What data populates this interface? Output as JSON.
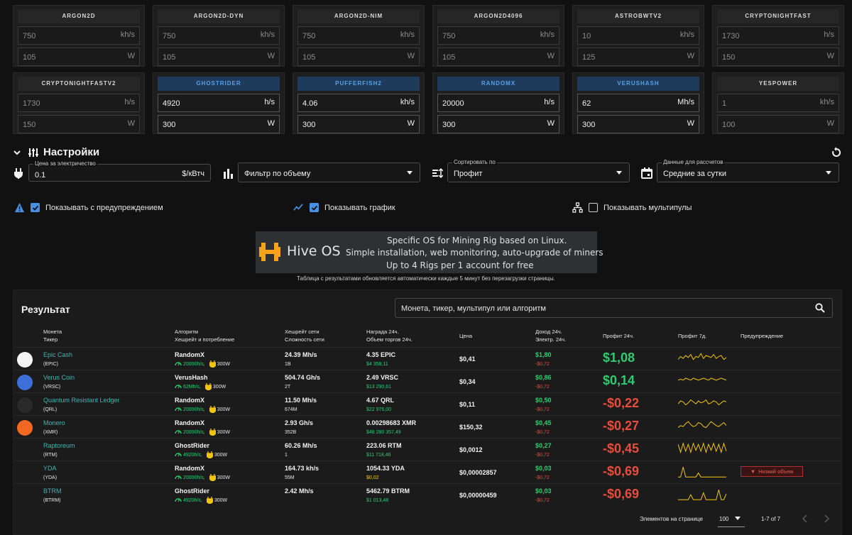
{
  "algorithms": [
    {
      "name": "ARGON2D",
      "hashrate": "750",
      "unit": "kh/s",
      "power": "105",
      "power_unit": "W",
      "active": false
    },
    {
      "name": "ARGON2D-DYN",
      "hashrate": "750",
      "unit": "kh/s",
      "power": "105",
      "power_unit": "W",
      "active": false
    },
    {
      "name": "ARGON2D-NIM",
      "hashrate": "750",
      "unit": "kh/s",
      "power": "105",
      "power_unit": "W",
      "active": false
    },
    {
      "name": "ARGON2D4096",
      "hashrate": "750",
      "unit": "kh/s",
      "power": "105",
      "power_unit": "W",
      "active": false
    },
    {
      "name": "ASTROBWTV2",
      "hashrate": "10",
      "unit": "kh/s",
      "power": "125",
      "power_unit": "W",
      "active": false
    },
    {
      "name": "CRYPTONIGHTFAST",
      "hashrate": "1730",
      "unit": "h/s",
      "power": "150",
      "power_unit": "W",
      "active": false
    },
    {
      "name": "CRYPTONIGHTFASTV2",
      "hashrate": "1730",
      "unit": "h/s",
      "power": "150",
      "power_unit": "W",
      "active": false
    },
    {
      "name": "GHOSTRIDER",
      "hashrate": "4920",
      "unit": "h/s",
      "power": "300",
      "power_unit": "W",
      "active": true
    },
    {
      "name": "PUFFERFISH2",
      "hashrate": "4.06",
      "unit": "kh/s",
      "power": "300",
      "power_unit": "W",
      "active": true
    },
    {
      "name": "RANDOMX",
      "hashrate": "20000",
      "unit": "h/s",
      "power": "300",
      "power_unit": "W",
      "active": true
    },
    {
      "name": "VERUSHASH",
      "hashrate": "62",
      "unit": "Mh/s",
      "power": "300",
      "power_unit": "W",
      "active": true
    },
    {
      "name": "YESPOWER",
      "hashrate": "1",
      "unit": "kh/s",
      "power": "100",
      "power_unit": "W",
      "active": false
    }
  ],
  "settings": {
    "title": "Настройки",
    "electricity": {
      "label": "Цена за электричество",
      "value": "0.1",
      "suffix": "$/кВтч"
    },
    "volume_filter": {
      "value": "Фильтр по объему"
    },
    "sort": {
      "label": "Сортировать по",
      "value": "Профит"
    },
    "calc_data": {
      "label": "Данные для рассчетов",
      "value": "Средние за сутки"
    },
    "show_warnings": {
      "label": "Показывать с предупреждением",
      "checked": true
    },
    "show_chart": {
      "label": "Показывать график",
      "checked": true
    },
    "show_multipools": {
      "label": "Показывать мультипулы",
      "checked": false
    }
  },
  "banner": {
    "brand": "Hive OS",
    "line1": "Specific OS for Mining Rig based on Linux.",
    "line2": "Simple installation, web monitoring, auto-upgrade of miners",
    "line3": "Up to 4 Rigs per 1 account for free"
  },
  "update_note": "Таблица с результатами обновляется автоматически каждые 5 минут без перезагрузки страницы.",
  "results": {
    "title": "Результат",
    "search_placeholder": "Монета, тикер, мультипул или алгоритм",
    "headers": {
      "coin": "Монета",
      "ticker": "Тикер",
      "algo": "Алгоритм",
      "algo_sub": "Хешрейт и потребление",
      "net_hash": "Хешрейт сети",
      "difficulty": "Сложность сети",
      "reward": "Награда 24ч.",
      "volume": "Объем торгов 24ч.",
      "price": "Цена",
      "income": "Доход 24ч.",
      "electricity": "Электр. 24ч.",
      "profit24": "Профит 24ч.",
      "profit7": "Профит 7д.",
      "warning": "Предупреждение"
    },
    "rows": [
      {
        "name": "Epic Cash",
        "ticker": "(EPIC)",
        "algo": "RandomX",
        "hr": "20000h/s,",
        "pw": "300W",
        "net_hash": "24.39 Mh/s",
        "difficulty": "1B",
        "reward": "4.35 EPIC",
        "volume": "$4 358,11",
        "volume_color": "#2ecc71",
        "price": "$0,41",
        "income": "$1,80",
        "elec": "-$0,72",
        "profit": "$1,08",
        "profit_color": "#2ecc71",
        "icon_color": "#f5f5f5",
        "warning": "",
        "spark": [
          6,
          9,
          7,
          10,
          8,
          11,
          6,
          9,
          8,
          12,
          7,
          10,
          9,
          8,
          11,
          7,
          9,
          10,
          6,
          8
        ]
      },
      {
        "name": "Verus Coin",
        "ticker": "(VRSC)",
        "algo": "VerusHash",
        "hr": "62Mh/s,",
        "pw": "300W",
        "net_hash": "504.74 Gh/s",
        "difficulty": "2T",
        "reward": "2.49 VRSC",
        "volume": "$13 290,61",
        "volume_color": "#2ecc71",
        "price": "$0,34",
        "income": "$0,86",
        "elec": "-$0,72",
        "profit": "$0,14",
        "profit_color": "#2ecc71",
        "icon_color": "#3e6fd8",
        "warning": "",
        "spark": [
          8,
          9,
          8,
          10,
          9,
          8,
          10,
          9,
          8,
          9,
          10,
          9,
          8,
          10,
          9,
          8,
          9,
          10,
          9,
          8
        ]
      },
      {
        "name": "Quantum Resistant Ledger",
        "ticker": "(QRL)",
        "algo": "RandomX",
        "hr": "20000h/s,",
        "pw": "300W",
        "net_hash": "11.50 Mh/s",
        "difficulty": "674M",
        "reward": "4.67 QRL",
        "volume": "$22 976,00",
        "volume_color": "#2ecc71",
        "price": "$0,11",
        "income": "$0,50",
        "elec": "-$0,72",
        "profit": "-$0,22",
        "profit_color": "#e74c3c",
        "icon_color": "#2a2a2a",
        "warning": "",
        "spark": [
          7,
          10,
          9,
          6,
          8,
          11,
          9,
          7,
          10,
          8,
          9,
          11,
          7,
          8,
          10,
          9,
          6,
          8,
          10,
          9
        ]
      },
      {
        "name": "Monero",
        "ticker": "(XMR)",
        "algo": "RandomX",
        "hr": "20000h/s,",
        "pw": "300W",
        "net_hash": "2.93 Gh/s",
        "difficulty": "352B",
        "reward": "0.00298683 XMR",
        "volume": "$48 280 357,49",
        "volume_color": "#2ecc71",
        "price": "$150,32",
        "income": "$0,45",
        "elec": "-$0,72",
        "profit": "-$0,27",
        "profit_color": "#e74c3c",
        "icon_color": "#f26822",
        "warning": "",
        "spark": [
          6,
          8,
          7,
          10,
          12,
          9,
          7,
          8,
          11,
          10,
          7,
          6,
          9,
          12,
          10,
          8,
          7,
          9,
          11,
          8
        ]
      },
      {
        "name": "Raptoreum",
        "ticker": "(RTM)",
        "algo": "GhostRider",
        "hr": "4920h/s,",
        "pw": "300W",
        "net_hash": "60.26 Mh/s",
        "difficulty": "1",
        "reward": "223.06 RTM",
        "volume": "$11 718,46",
        "volume_color": "#2ecc71",
        "price": "$0,0012",
        "income": "$0,27",
        "elec": "-$0,72",
        "profit": "-$0,45",
        "profit_color": "#e74c3c",
        "icon_color": "#1b1b1b",
        "warning": "",
        "spark": [
          12,
          4,
          13,
          5,
          12,
          4,
          13,
          6,
          12,
          5,
          13,
          4,
          12,
          6,
          13,
          5,
          12,
          4,
          13,
          5
        ]
      },
      {
        "name": "YDA",
        "ticker": "(YDA)",
        "algo": "RandomX",
        "hr": "20000h/s,",
        "pw": "300W",
        "net_hash": "164.73 kh/s",
        "difficulty": "55M",
        "reward": "1054.33 YDA",
        "volume": "$0,02",
        "volume_color": "#f1c40f",
        "price": "$0,00002857",
        "income": "$0,03",
        "elec": "-$0,72",
        "profit": "-$0,69",
        "profit_color": "#e74c3c",
        "icon_color": "#1b1b1b",
        "warning": "Низкий объем",
        "spark": [
          2,
          2,
          12,
          2,
          2,
          2,
          2,
          2,
          6,
          2,
          2,
          2,
          2,
          2,
          2,
          2,
          2,
          2,
          2,
          2
        ]
      },
      {
        "name": "BTRM",
        "ticker": "(BTRM)",
        "algo": "GhostRider",
        "hr": "4920h/s,",
        "pw": "300W",
        "net_hash": "2.42 Mh/s",
        "difficulty": "",
        "reward": "5462.79 BTRM",
        "volume": "$1 013,48",
        "volume_color": "#2ecc71",
        "price": "$0,00000459",
        "income": "$0,03",
        "elec": "-$0,72",
        "profit": "-$0,69",
        "profit_color": "#e74c3c",
        "icon_color": "#1b1b1b",
        "warning": "",
        "spark": [
          2,
          2,
          2,
          2,
          2,
          7,
          2,
          2,
          2,
          2,
          9,
          2,
          2,
          2,
          2,
          2,
          12,
          2,
          2,
          8
        ]
      }
    ],
    "pagination": {
      "label": "Элементов на странице",
      "per_page": "100",
      "range": "1-7 of 7"
    }
  }
}
